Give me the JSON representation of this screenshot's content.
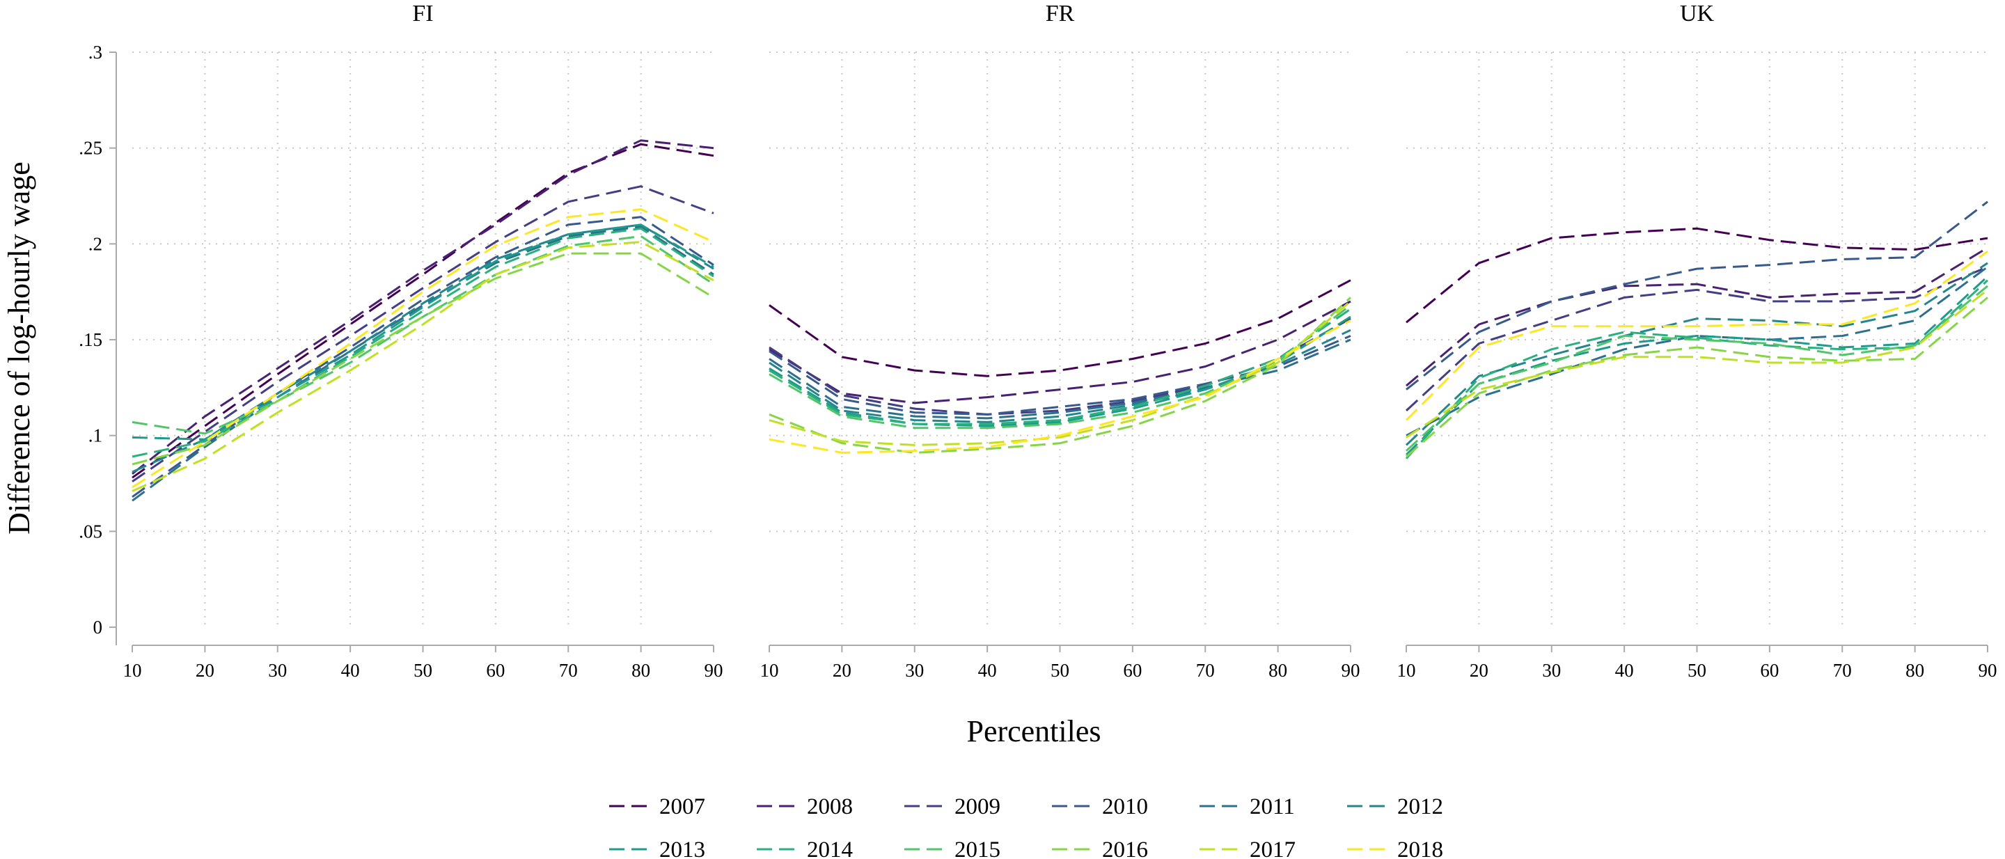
{
  "chart_data": {
    "type": "line",
    "ylabel": "Difference of log-hourly wage",
    "xlabel": "Percentiles",
    "ylim": [
      0,
      0.3
    ],
    "xlim": [
      10,
      90
    ],
    "x": [
      10,
      20,
      30,
      40,
      50,
      60,
      70,
      80,
      90
    ],
    "yticks": [
      0,
      0.05,
      0.1,
      0.15,
      0.2,
      0.25,
      0.3
    ],
    "ytick_labels": [
      "0",
      ".05",
      ".1",
      ".15",
      ".2",
      ".25",
      ".3"
    ],
    "xtick_labels": [
      "10",
      "20",
      "30",
      "40",
      "50",
      "60",
      "70",
      "80",
      "90"
    ],
    "grid": true,
    "line_style": "dashed",
    "legend_position": "bottom",
    "series_names": [
      "2007",
      "2008",
      "2009",
      "2010",
      "2011",
      "2012",
      "2013",
      "2014",
      "2015",
      "2016",
      "2017",
      "2018"
    ],
    "series_colors": [
      "#440154",
      "#482173",
      "#433e85",
      "#38598c",
      "#2d708e",
      "#25858e",
      "#1e9b8a",
      "#2ab07f",
      "#51c56a",
      "#86d549",
      "#c2df23",
      "#fde725"
    ],
    "panels": [
      {
        "title": "FI",
        "series": [
          {
            "name": "2007",
            "values": [
              0.078,
              0.105,
              0.132,
              0.158,
              0.184,
              0.211,
              0.237,
              0.252,
              0.246
            ]
          },
          {
            "name": "2008",
            "values": [
              0.08,
              0.11,
              0.135,
              0.16,
              0.186,
              0.21,
              0.236,
              0.254,
              0.25
            ]
          },
          {
            "name": "2009",
            "values": [
              0.076,
              0.102,
              0.128,
              0.152,
              0.177,
              0.201,
              0.222,
              0.23,
              0.216
            ]
          },
          {
            "name": "2010",
            "values": [
              0.068,
              0.095,
              0.122,
              0.146,
              0.171,
              0.193,
              0.21,
              0.214,
              0.189
            ]
          },
          {
            "name": "2011",
            "values": [
              0.066,
              0.094,
              0.12,
              0.144,
              0.168,
              0.19,
              0.204,
              0.209,
              0.184
            ]
          },
          {
            "name": "2012",
            "values": [
              0.081,
              0.098,
              0.122,
              0.144,
              0.169,
              0.192,
              0.205,
              0.21,
              0.187
            ]
          },
          {
            "name": "2013",
            "values": [
              0.099,
              0.098,
              0.12,
              0.142,
              0.167,
              0.191,
              0.205,
              0.21,
              0.188
            ]
          },
          {
            "name": "2014",
            "values": [
              0.089,
              0.097,
              0.118,
              0.141,
              0.165,
              0.188,
              0.203,
              0.208,
              0.183
            ]
          },
          {
            "name": "2015",
            "values": [
              0.107,
              0.101,
              0.118,
              0.138,
              0.162,
              0.184,
              0.199,
              0.204,
              0.179
            ]
          },
          {
            "name": "2016",
            "values": [
              0.085,
              0.095,
              0.118,
              0.14,
              0.162,
              0.182,
              0.195,
              0.195,
              0.172
            ]
          },
          {
            "name": "2017",
            "values": [
              0.071,
              0.088,
              0.112,
              0.134,
              0.158,
              0.184,
              0.198,
              0.201,
              0.181
            ]
          },
          {
            "name": "2018",
            "values": [
              0.073,
              0.097,
              0.122,
              0.148,
              0.175,
              0.199,
              0.214,
              0.218,
              0.201
            ]
          }
        ]
      },
      {
        "title": "FR",
        "series": [
          {
            "name": "2007",
            "values": [
              0.168,
              0.141,
              0.134,
              0.131,
              0.134,
              0.14,
              0.148,
              0.161,
              0.181
            ]
          },
          {
            "name": "2008",
            "values": [
              0.145,
              0.122,
              0.117,
              0.12,
              0.124,
              0.128,
              0.136,
              0.15,
              0.17
            ]
          },
          {
            "name": "2009",
            "values": [
              0.146,
              0.121,
              0.114,
              0.111,
              0.113,
              0.118,
              0.126,
              0.14,
              0.161
            ]
          },
          {
            "name": "2010",
            "values": [
              0.144,
              0.119,
              0.112,
              0.111,
              0.115,
              0.119,
              0.127,
              0.136,
              0.152
            ]
          },
          {
            "name": "2011",
            "values": [
              0.14,
              0.115,
              0.11,
              0.109,
              0.112,
              0.117,
              0.125,
              0.134,
              0.15
            ]
          },
          {
            "name": "2012",
            "values": [
              0.138,
              0.113,
              0.108,
              0.107,
              0.11,
              0.116,
              0.124,
              0.137,
              0.155
            ]
          },
          {
            "name": "2013",
            "values": [
              0.135,
              0.112,
              0.106,
              0.105,
              0.107,
              0.114,
              0.124,
              0.138,
              0.162
            ]
          },
          {
            "name": "2014",
            "values": [
              0.134,
              0.111,
              0.106,
              0.106,
              0.108,
              0.115,
              0.126,
              0.14,
              0.166
            ]
          },
          {
            "name": "2015",
            "values": [
              0.132,
              0.11,
              0.104,
              0.104,
              0.106,
              0.112,
              0.122,
              0.139,
              0.168
            ]
          },
          {
            "name": "2016",
            "values": [
              0.111,
              0.096,
              0.091,
              0.093,
              0.096,
              0.105,
              0.118,
              0.137,
              0.172
            ]
          },
          {
            "name": "2017",
            "values": [
              0.108,
              0.097,
              0.095,
              0.096,
              0.099,
              0.108,
              0.121,
              0.138,
              0.17
            ]
          },
          {
            "name": "2018",
            "values": [
              0.098,
              0.091,
              0.092,
              0.094,
              0.1,
              0.11,
              0.12,
              0.14,
              0.16
            ]
          }
        ]
      },
      {
        "title": "UK",
        "series": [
          {
            "name": "2007",
            "values": [
              0.159,
              0.19,
              0.203,
              0.206,
              0.208,
              0.202,
              0.198,
              0.197,
              0.203
            ]
          },
          {
            "name": "2008",
            "values": [
              0.126,
              0.158,
              0.17,
              0.178,
              0.179,
              0.172,
              0.174,
              0.175,
              0.198
            ]
          },
          {
            "name": "2009",
            "values": [
              0.113,
              0.148,
              0.16,
              0.172,
              0.176,
              0.17,
              0.17,
              0.172,
              0.188
            ]
          },
          {
            "name": "2010",
            "values": [
              0.124,
              0.154,
              0.17,
              0.179,
              0.187,
              0.189,
              0.192,
              0.193,
              0.222
            ]
          },
          {
            "name": "2011",
            "values": [
              0.1,
              0.12,
              0.132,
              0.145,
              0.152,
              0.15,
              0.152,
              0.16,
              0.188
            ]
          },
          {
            "name": "2012",
            "values": [
              0.095,
              0.131,
              0.142,
              0.152,
              0.161,
              0.16,
              0.157,
              0.165,
              0.19
            ]
          },
          {
            "name": "2013",
            "values": [
              0.09,
              0.127,
              0.139,
              0.148,
              0.152,
              0.15,
              0.146,
              0.148,
              0.183
            ]
          },
          {
            "name": "2014",
            "values": [
              0.088,
              0.13,
              0.145,
              0.154,
              0.151,
              0.147,
              0.145,
              0.146,
              0.181
            ]
          },
          {
            "name": "2015",
            "values": [
              0.092,
              0.127,
              0.138,
              0.152,
              0.15,
              0.148,
              0.142,
              0.147,
              0.178
            ]
          },
          {
            "name": "2016",
            "values": [
              0.089,
              0.122,
              0.134,
              0.142,
              0.146,
              0.141,
              0.139,
              0.14,
              0.172
            ]
          },
          {
            "name": "2017",
            "values": [
              0.099,
              0.124,
              0.133,
              0.141,
              0.141,
              0.138,
              0.138,
              0.146,
              0.176
            ]
          },
          {
            "name": "2018",
            "values": [
              0.108,
              0.146,
              0.157,
              0.157,
              0.157,
              0.158,
              0.158,
              0.169,
              0.196
            ]
          }
        ]
      }
    ]
  }
}
